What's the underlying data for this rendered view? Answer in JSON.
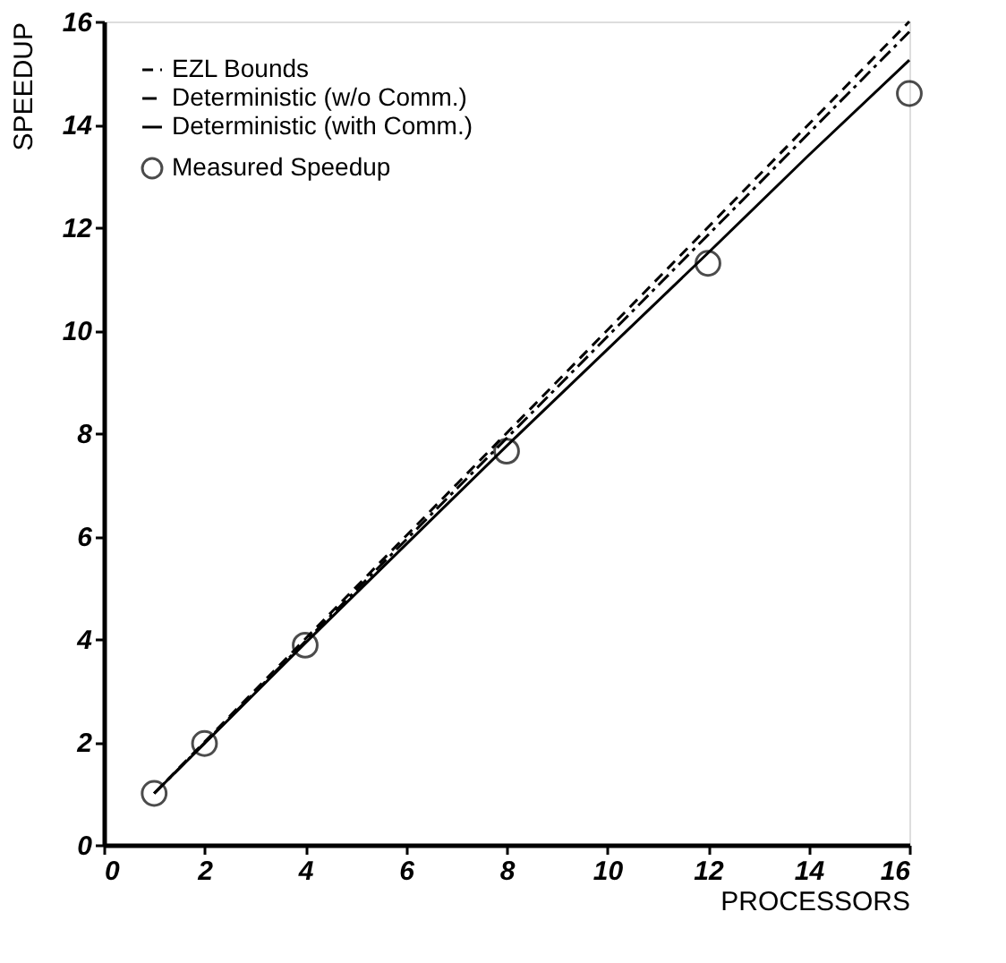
{
  "chart_data": {
    "type": "line",
    "xlabel": "PROCESSORS",
    "ylabel": "SPEEDUP",
    "xlim": [
      0,
      16
    ],
    "ylim": [
      0,
      16
    ],
    "xticks": [
      0,
      2,
      4,
      6,
      8,
      10,
      12,
      14,
      16
    ],
    "yticks": [
      0,
      2,
      4,
      6,
      8,
      10,
      12,
      14,
      16
    ],
    "grid": false,
    "legend": "top left",
    "series": [
      {
        "name": "EZL Bounds",
        "line_style": "dashed",
        "color": "#000000",
        "x": [
          1,
          2,
          4,
          8,
          12,
          16
        ],
        "values": [
          1,
          2,
          4,
          8,
          12,
          16
        ]
      },
      {
        "name": "Deterministic (w/o Comm.)",
        "line_style": "dashdot",
        "color": "#000000",
        "x": [
          1,
          2,
          4,
          8,
          12,
          16
        ],
        "values": [
          1,
          1.98,
          3.95,
          7.9,
          11.85,
          15.8
        ]
      },
      {
        "name": "Deterministic (with Comm.)",
        "line_style": "solid",
        "color": "#000000",
        "x": [
          1,
          2,
          4,
          8,
          12,
          14,
          16
        ],
        "values": [
          1,
          1.97,
          3.92,
          7.75,
          11.5,
          13.4,
          15.25
        ]
      },
      {
        "name": "Measured Speedup",
        "type": "scatter",
        "marker": "circle",
        "color": "#000000",
        "x": [
          1,
          2,
          4,
          8,
          12,
          16
        ],
        "values": [
          1.0,
          1.97,
          3.88,
          7.65,
          11.3,
          14.6
        ]
      }
    ]
  }
}
